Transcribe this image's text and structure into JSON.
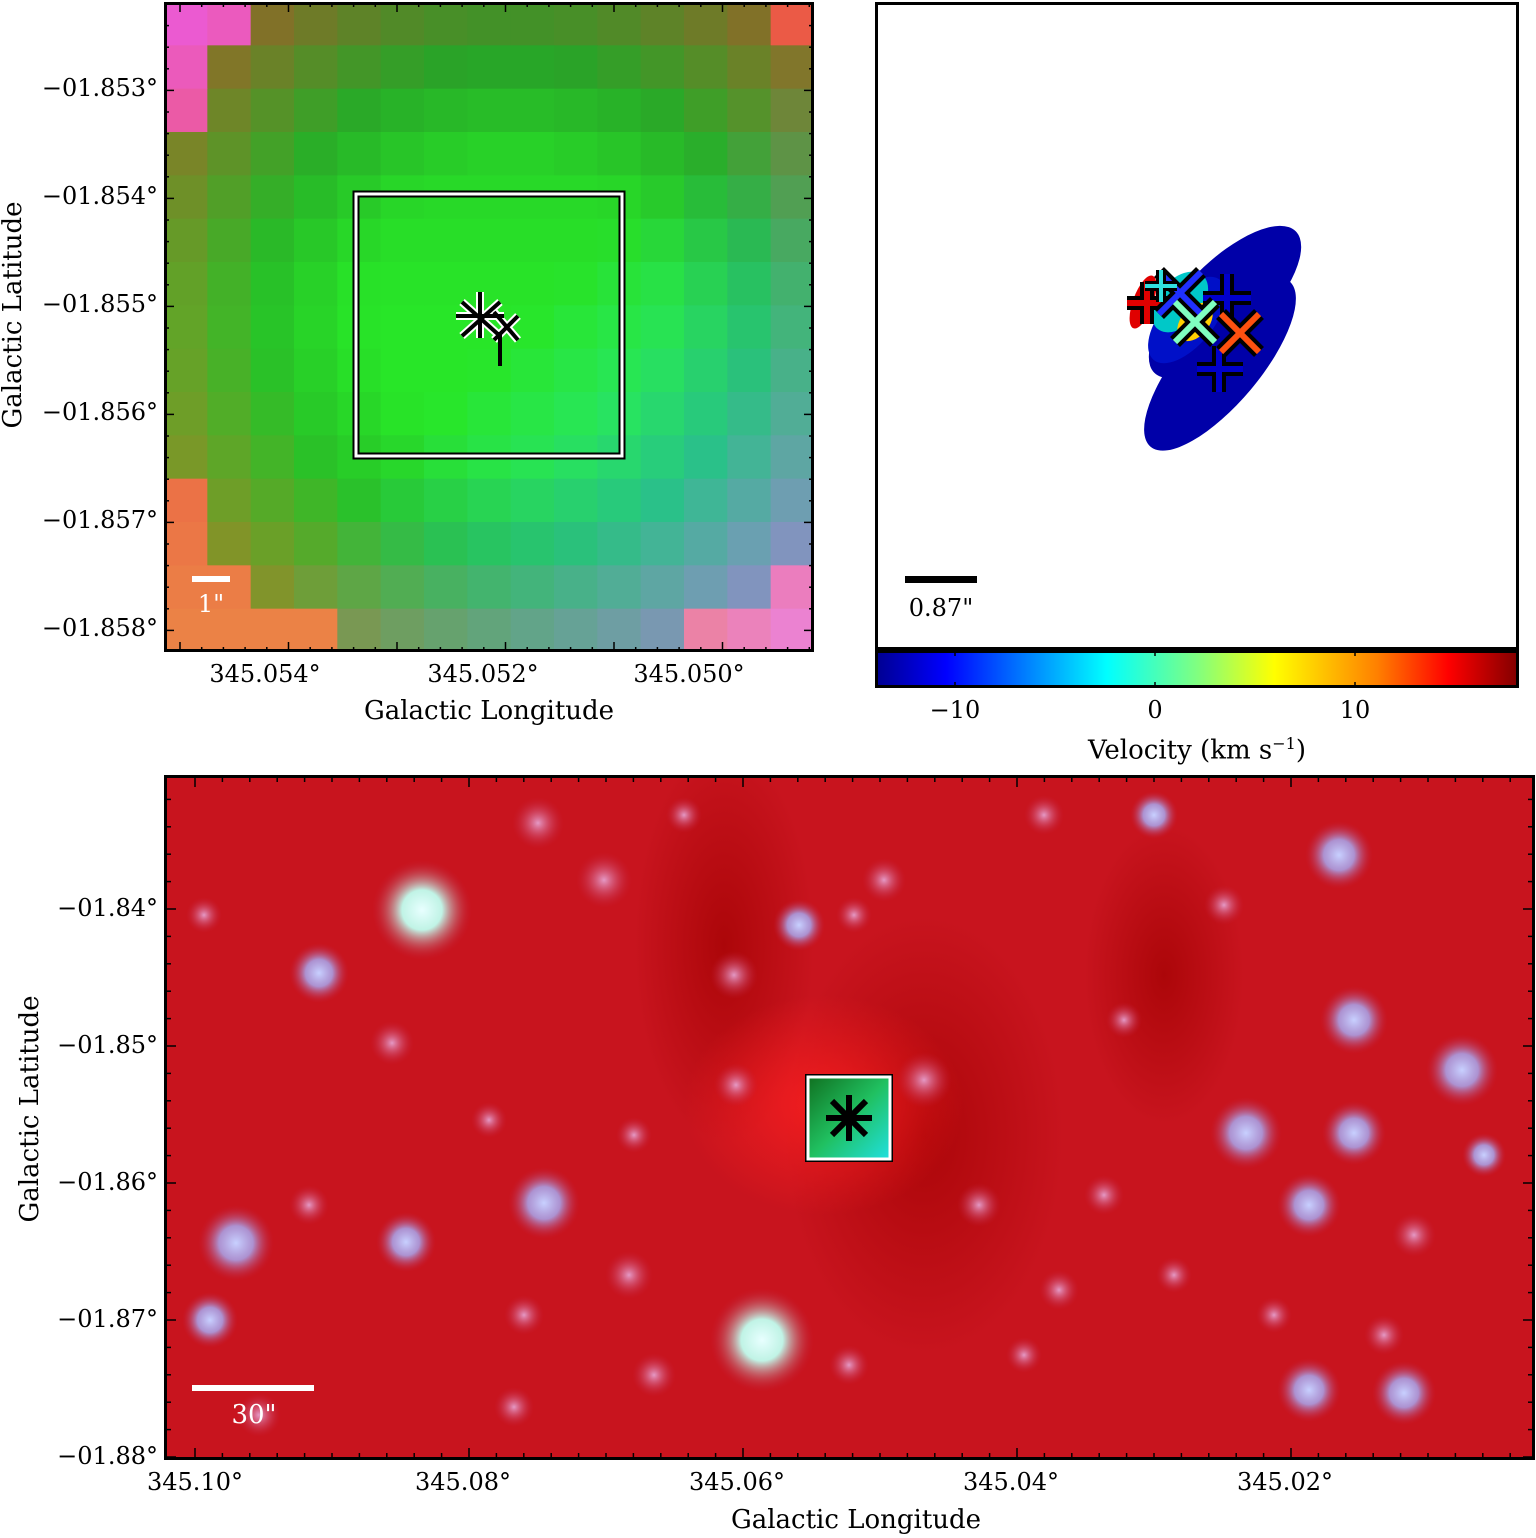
{
  "top_left": {
    "x_axis_title": "Galactic Longitude",
    "y_axis_title": "Galactic Latitude",
    "x_ticks": [
      "345.054°",
      "345.052°",
      "345.050°"
    ],
    "y_ticks": [
      "−01.853°",
      "−01.854°",
      "−01.855°",
      "−01.856°",
      "−01.857°",
      "−01.858°"
    ],
    "scale_label": "1\""
  },
  "top_right": {
    "scale_label": "0.87\"",
    "colorbar_title": "Velocity (km s",
    "colorbar_exponent": "−1",
    "colorbar_title_close": ")",
    "colorbar_ticks": [
      "−10",
      "0",
      "10"
    ],
    "colorbar_range_kms": [
      -14,
      18
    ],
    "colorbar_colormap": [
      "#00008f",
      "#0000ff",
      "#00ffff",
      "#80ff80",
      "#ffff00",
      "#ff8000",
      "#ff0000",
      "#800000"
    ]
  },
  "bottom": {
    "x_axis_title": "Galactic Longitude",
    "y_axis_title": "Galactic Latitude",
    "x_ticks": [
      "345.10°",
      "345.08°",
      "345.06°",
      "345.04°",
      "345.02°"
    ],
    "y_ticks": [
      "−01.84°",
      "−01.85°",
      "−01.86°",
      "−01.87°",
      "−01.88°"
    ],
    "scale_label": "30\""
  }
}
